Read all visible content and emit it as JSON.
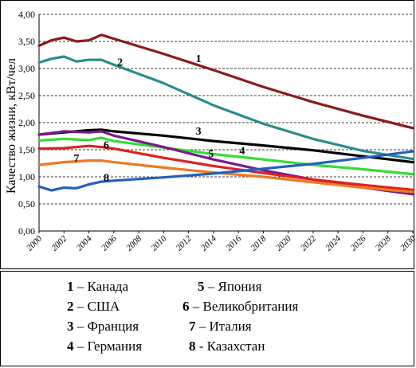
{
  "chart_data": {
    "type": "line",
    "title": "",
    "xlabel": "",
    "ylabel": "Качество жизни, кВт/чел",
    "ylim": [
      0,
      4
    ],
    "yticks": [
      "0,00",
      "0,50",
      "1,00",
      "1,50",
      "2,00",
      "2,50",
      "3,00",
      "3,50",
      "4,00"
    ],
    "xticks": [
      "2000",
      "2002",
      "2004",
      "2006",
      "2008",
      "2010",
      "2012",
      "2014",
      "2016",
      "2018",
      "2020",
      "2022",
      "2024",
      "2026",
      "2028",
      "2030"
    ],
    "grid": "horizontal dashed",
    "series": [
      {
        "name": "Канада",
        "number": "1",
        "color": "#8b1a1a",
        "x": [
          2000,
          2001,
          2002,
          2003,
          2004,
          2005,
          2006,
          2010,
          2014,
          2018,
          2022,
          2026,
          2030
        ],
        "values": [
          3.42,
          3.52,
          3.57,
          3.5,
          3.52,
          3.62,
          3.55,
          3.27,
          2.97,
          2.66,
          2.38,
          2.13,
          1.9
        ]
      },
      {
        "name": "США",
        "number": "2",
        "color": "#2a8c8c",
        "x": [
          2000,
          2001,
          2002,
          2003,
          2004,
          2005,
          2006,
          2010,
          2014,
          2018,
          2022,
          2026,
          2030
        ],
        "values": [
          3.11,
          3.18,
          3.22,
          3.13,
          3.16,
          3.16,
          3.07,
          2.73,
          2.32,
          1.98,
          1.7,
          1.48,
          1.33
        ]
      },
      {
        "name": "Франция",
        "number": "3",
        "color": "#000000",
        "x": [
          2000,
          2002,
          2004,
          2005,
          2006,
          2010,
          2014,
          2018,
          2022,
          2026,
          2030
        ],
        "values": [
          1.78,
          1.82,
          1.86,
          1.87,
          1.84,
          1.76,
          1.66,
          1.58,
          1.49,
          1.38,
          1.27
        ]
      },
      {
        "name": "Германия",
        "number": "4",
        "color": "#33dd33",
        "x": [
          2000,
          2002,
          2004,
          2005,
          2006,
          2010,
          2014,
          2018,
          2022,
          2026,
          2030
        ],
        "values": [
          1.67,
          1.7,
          1.68,
          1.72,
          1.66,
          1.54,
          1.42,
          1.32,
          1.22,
          1.14,
          1.05
        ]
      },
      {
        "name": "Япония",
        "number": "5",
        "color": "#7a1a8c",
        "x": [
          2000,
          2002,
          2004,
          2005,
          2006,
          2010,
          2014,
          2018,
          2022,
          2026,
          2030
        ],
        "values": [
          1.78,
          1.84,
          1.82,
          1.84,
          1.76,
          1.55,
          1.32,
          1.12,
          0.95,
          0.8,
          0.68
        ]
      },
      {
        "name": "Великобритания",
        "number": "6",
        "color": "#e02020",
        "x": [
          2000,
          2002,
          2004,
          2005,
          2006,
          2010,
          2014,
          2018,
          2022,
          2026,
          2030
        ],
        "values": [
          1.52,
          1.53,
          1.57,
          1.55,
          1.52,
          1.35,
          1.2,
          1.07,
          0.95,
          0.85,
          0.76
        ]
      },
      {
        "name": "Италия",
        "number": "7",
        "color": "#f07820",
        "x": [
          2000,
          2002,
          2004,
          2005,
          2006,
          2010,
          2014,
          2018,
          2022,
          2026,
          2030
        ],
        "values": [
          1.22,
          1.27,
          1.3,
          1.3,
          1.27,
          1.17,
          1.08,
          1.0,
          0.9,
          0.8,
          0.72
        ]
      },
      {
        "name": "Казахстан",
        "number": "8",
        "color": "#2060c0",
        "x": [
          2000,
          2001,
          2002,
          2003,
          2004,
          2005,
          2006,
          2010,
          2014,
          2018,
          2022,
          2026,
          2030
        ],
        "values": [
          0.82,
          0.75,
          0.8,
          0.79,
          0.86,
          0.91,
          0.93,
          0.99,
          1.06,
          1.15,
          1.24,
          1.35,
          1.47
        ]
      }
    ],
    "labels": [
      {
        "text": "1",
        "series": 0,
        "x": 2012.8,
        "y": 3.12
      },
      {
        "text": "2",
        "series": 1,
        "x": 2006.5,
        "y": 3.05
      },
      {
        "text": "3",
        "series": 2,
        "x": 2012.8,
        "y": 1.78
      },
      {
        "text": "4",
        "series": 3,
        "x": 2016.3,
        "y": 1.42
      },
      {
        "text": "5",
        "series": 4,
        "x": 2013.8,
        "y": 1.36
      },
      {
        "text": "6",
        "series": 5,
        "x": 2005.4,
        "y": 1.52
      },
      {
        "text": "7",
        "series": 6,
        "x": 2003.0,
        "y": 1.28
      },
      {
        "text": "8",
        "series": 7,
        "x": 2005.4,
        "y": 0.92
      }
    ]
  },
  "legend": [
    {
      "num": "1",
      "sep": " – ",
      "name": "Канада"
    },
    {
      "num": "2",
      "sep": " – ",
      "name": "США"
    },
    {
      "num": "3",
      "sep": " – ",
      "name": "Франция"
    },
    {
      "num": "4",
      "sep": " – ",
      "name": "Германия"
    },
    {
      "num": "5",
      "sep": " – ",
      "name": "Япония"
    },
    {
      "num": "6",
      "sep": " – ",
      "name": "Великобритания"
    },
    {
      "num": "7",
      "sep": " – ",
      "name": "Италия"
    },
    {
      "num": "8",
      "sep": " - ",
      "name": "Казахстан"
    }
  ]
}
